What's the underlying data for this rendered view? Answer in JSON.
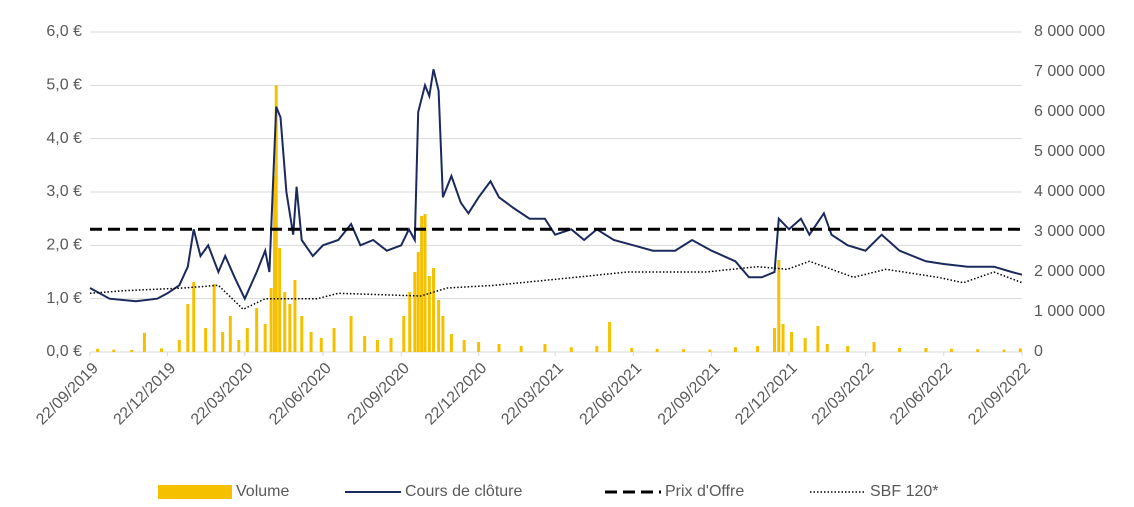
{
  "chart_data": {
    "type": "line",
    "ylim": [
      0,
      6
    ],
    "yticks": [
      {
        "value": 0,
        "label": "0,0 €"
      },
      {
        "value": 1,
        "label": "1,0 €"
      },
      {
        "value": 2,
        "label": "2,0 €"
      },
      {
        "value": 3,
        "label": "3,0 €"
      },
      {
        "value": 4,
        "label": "4,0 €"
      },
      {
        "value": 5,
        "label": "5,0 €"
      },
      {
        "value": 6,
        "label": "6,0 €"
      }
    ],
    "y2lim": [
      0,
      8000000
    ],
    "y2ticks": [
      0,
      {
        "value": 1000000,
        "label": "1 000 000"
      },
      {
        "value": 2000000,
        "label": "2 000 000"
      },
      {
        "value": 3000000,
        "label": "3 000 000"
      },
      {
        "value": 4000000,
        "label": "4 000 000"
      },
      {
        "value": 5000000,
        "label": "5 000 000"
      },
      {
        "value": 6000000,
        "label": "6 000 000"
      },
      {
        "value": 7000000,
        "label": "7 000 000"
      },
      {
        "value": 8000000,
        "label": "8 000 000"
      }
    ],
    "xlim": [
      "22/09/2019",
      "22/09/2022"
    ],
    "xticks": [
      "22/09/2019",
      "22/12/2019",
      "22/03/2020",
      "22/06/2020",
      "22/09/2020",
      "22/12/2020",
      "22/03/2021",
      "22/06/2021",
      "22/09/2021",
      "22/12/2021",
      "22/03/2022",
      "22/06/2022",
      "22/09/2022"
    ],
    "grid": true,
    "legend": "bottom",
    "series": [
      {
        "name": "Volume",
        "type": "bar",
        "axis": "y2",
        "color": "#f5c000",
        "dash": "solid",
        "x": [
          "01/10/2019",
          "20/10/2019",
          "10/11/2019",
          "25/11/2019",
          "15/12/2019",
          "05/01/2020",
          "15/01/2020",
          "22/01/2020",
          "05/02/2020",
          "15/02/2020",
          "25/02/2020",
          "05/03/2020",
          "15/03/2020",
          "25/03/2020",
          "05/04/2020",
          "15/04/2020",
          "22/04/2020",
          "26/04/2020",
          "28/04/2020",
          "02/05/2020",
          "08/05/2020",
          "14/05/2020",
          "20/05/2020",
          "28/05/2020",
          "08/06/2020",
          "20/06/2020",
          "05/07/2020",
          "25/07/2020",
          "10/08/2020",
          "25/08/2020",
          "10/09/2020",
          "25/09/2020",
          "02/10/2020",
          "08/10/2020",
          "12/10/2020",
          "16/10/2020",
          "20/10/2020",
          "25/10/2020",
          "30/10/2020",
          "05/11/2020",
          "10/11/2020",
          "20/11/2020",
          "05/12/2020",
          "22/12/2020",
          "15/01/2021",
          "10/02/2021",
          "10/03/2021",
          "10/04/2021",
          "10/05/2021",
          "25/05/2021",
          "20/06/2021",
          "20/07/2021",
          "20/08/2021",
          "20/09/2021",
          "20/10/2021",
          "15/11/2021",
          "05/12/2021",
          "10/12/2021",
          "15/12/2021",
          "25/12/2021",
          "10/01/2022",
          "25/01/2022",
          "05/02/2022",
          "01/03/2022",
          "01/04/2022",
          "01/05/2022",
          "01/06/2022",
          "01/07/2022",
          "01/08/2022",
          "01/09/2022",
          "20/09/2022"
        ],
        "values": [
          80000,
          60000,
          50000,
          480000,
          90000,
          300000,
          1200000,
          1750000,
          600000,
          1700000,
          500000,
          900000,
          300000,
          600000,
          1100000,
          700000,
          1600000,
          4400000,
          6670000,
          2600000,
          1500000,
          1200000,
          1800000,
          900000,
          500000,
          350000,
          600000,
          900000,
          400000,
          300000,
          350000,
          900000,
          1500000,
          2000000,
          2500000,
          3400000,
          3450000,
          1900000,
          2100000,
          1300000,
          900000,
          450000,
          300000,
          250000,
          200000,
          150000,
          200000,
          120000,
          150000,
          750000,
          100000,
          80000,
          70000,
          60000,
          120000,
          150000,
          600000,
          2300000,
          700000,
          500000,
          350000,
          650000,
          200000,
          150000,
          250000,
          100000,
          100000,
          80000,
          70000,
          60000,
          90000
        ]
      },
      {
        "name": "Cours de clôture",
        "type": "line",
        "color": "#1b2a5c",
        "dash": "solid",
        "x": [
          "22/09/2019",
          "15/10/2019",
          "15/11/2019",
          "10/12/2019",
          "22/12/2019",
          "05/01/2020",
          "15/01/2020",
          "22/01/2020",
          "30/01/2020",
          "08/02/2020",
          "20/02/2020",
          "28/02/2020",
          "10/03/2020",
          "22/03/2020",
          "05/04/2020",
          "15/04/2020",
          "20/04/2020",
          "28/04/2020",
          "03/05/2020",
          "10/05/2020",
          "18/05/2020",
          "22/05/2020",
          "28/05/2020",
          "10/06/2020",
          "22/06/2020",
          "10/07/2020",
          "25/07/2020",
          "05/08/2020",
          "20/08/2020",
          "05/09/2020",
          "22/09/2020",
          "01/10/2020",
          "08/10/2020",
          "12/10/2020",
          "20/10/2020",
          "25/10/2020",
          "30/10/2020",
          "05/11/2020",
          "10/11/2020",
          "20/11/2020",
          "01/12/2020",
          "10/12/2020",
          "22/12/2020",
          "05/01/2021",
          "15/01/2021",
          "01/02/2021",
          "20/02/2021",
          "10/03/2021",
          "22/03/2021",
          "10/04/2021",
          "25/04/2021",
          "10/05/2021",
          "30/05/2021",
          "22/06/2021",
          "15/07/2021",
          "10/08/2021",
          "30/08/2021",
          "22/09/2021",
          "20/10/2021",
          "05/11/2021",
          "20/11/2021",
          "05/12/2021",
          "10/12/2021",
          "22/12/2021",
          "05/01/2022",
          "15/01/2022",
          "01/02/2022",
          "10/02/2022",
          "01/03/2022",
          "22/03/2022",
          "10/04/2022",
          "01/05/2022",
          "01/06/2022",
          "22/06/2022",
          "20/07/2022",
          "20/08/2022",
          "10/09/2022",
          "22/09/2022"
        ],
        "values": [
          1.2,
          1.0,
          0.95,
          1.0,
          1.1,
          1.25,
          1.6,
          2.3,
          1.8,
          2.0,
          1.5,
          1.8,
          1.4,
          1.0,
          1.5,
          1.9,
          1.5,
          4.6,
          4.4,
          3.0,
          2.2,
          3.1,
          2.1,
          1.8,
          2.0,
          2.1,
          2.4,
          2.0,
          2.1,
          1.9,
          2.0,
          2.3,
          2.1,
          4.5,
          5.0,
          4.8,
          5.3,
          4.9,
          2.9,
          3.3,
          2.8,
          2.6,
          2.9,
          3.2,
          2.9,
          2.7,
          2.5,
          2.5,
          2.2,
          2.3,
          2.1,
          2.3,
          2.1,
          2.0,
          1.9,
          1.9,
          2.1,
          1.9,
          1.7,
          1.4,
          1.4,
          1.5,
          2.5,
          2.3,
          2.5,
          2.2,
          2.6,
          2.2,
          2.0,
          1.9,
          2.2,
          1.9,
          1.7,
          1.65,
          1.6,
          1.6,
          1.5,
          1.45
        ]
      },
      {
        "name": "Prix d'Offre",
        "type": "line",
        "color": "#000000",
        "dash": "dashed",
        "x": [
          "22/09/2019",
          "22/09/2022"
        ],
        "values": [
          2.3,
          2.3
        ]
      },
      {
        "name": "SBF 120*",
        "type": "line",
        "color": "#000000",
        "dash": "dotted",
        "x": [
          "22/09/2019",
          "01/11/2019",
          "10/01/2020",
          "20/02/2020",
          "20/03/2020",
          "15/04/2020",
          "15/06/2020",
          "10/07/2020",
          "15/10/2020",
          "15/11/2020",
          "10/01/2021",
          "15/04/2021",
          "15/06/2021",
          "15/09/2021",
          "15/11/2021",
          "20/12/2021",
          "15/01/2022",
          "08/03/2022",
          "15/04/2022",
          "15/06/2022",
          "15/07/2022",
          "20/08/2022",
          "22/09/2022"
        ],
        "values": [
          1.1,
          1.15,
          1.2,
          1.25,
          0.8,
          1.0,
          1.0,
          1.1,
          1.05,
          1.2,
          1.25,
          1.4,
          1.5,
          1.5,
          1.6,
          1.55,
          1.7,
          1.4,
          1.55,
          1.4,
          1.3,
          1.5,
          1.3
        ]
      }
    ]
  }
}
